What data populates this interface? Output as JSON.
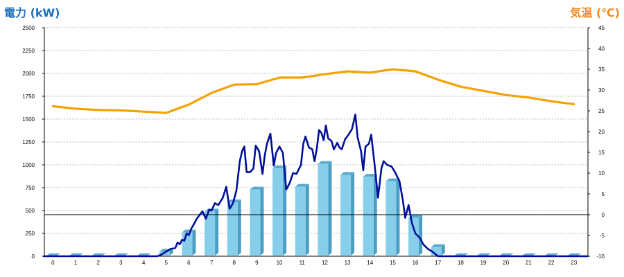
{
  "chart_data": {
    "type": "bar",
    "left_axis_title": "電力 (kW)",
    "right_axis_title": "気温 (℃)",
    "colors": {
      "left_title": "#1c6fba",
      "right_title": "#f08a1c",
      "bar_front": "#87ceeb",
      "bar_side": "#4a9ec4",
      "bar_top": "#5aa9cf",
      "power_line": "#000f99",
      "temperature_line": "#f5a100",
      "grid": "#bbbbbb"
    },
    "x_tick_labels": [
      "0",
      "1",
      "2",
      "3",
      "4",
      "5",
      "6",
      "7",
      "8",
      "9",
      "10",
      "11",
      "12",
      "13",
      "14",
      "15",
      "16",
      "17",
      "18",
      "19",
      "20",
      "21",
      "22",
      "23"
    ],
    "y_left_ticks": [
      "0",
      "250",
      "500",
      "750",
      "1000",
      "1250",
      "1500",
      "1750",
      "2000",
      "2250",
      "2500"
    ],
    "y_right_ticks": [
      "-10",
      "-5",
      "0",
      "5",
      "10",
      "15",
      "20",
      "25",
      "30",
      "35",
      "40",
      "45"
    ],
    "ylim_left": [
      0,
      2500
    ],
    "ylim_right": [
      -10,
      45
    ],
    "grid": true,
    "hourly_power_kw": [
      0,
      0,
      0,
      0,
      0,
      50,
      260,
      490,
      590,
      730,
      960,
      760,
      1010,
      890,
      870,
      820,
      420,
      100,
      0,
      0,
      0,
      0,
      0,
      0
    ],
    "temperature_c": [
      [
        0,
        26.1
      ],
      [
        1,
        25.5
      ],
      [
        2,
        25.2
      ],
      [
        3,
        25.1
      ],
      [
        4,
        24.8
      ],
      [
        5,
        24.5
      ],
      [
        6,
        26.5
      ],
      [
        7,
        29.3
      ],
      [
        8,
        31.3
      ],
      [
        9,
        31.4
      ],
      [
        10,
        33.0
      ],
      [
        11,
        33.0
      ],
      [
        12,
        33.8
      ],
      [
        13,
        34.5
      ],
      [
        14,
        34.2
      ],
      [
        15,
        35.0
      ],
      [
        16,
        34.5
      ],
      [
        17,
        32.5
      ],
      [
        18,
        30.8
      ],
      [
        19,
        29.8
      ],
      [
        20,
        28.8
      ],
      [
        21,
        28.2
      ],
      [
        22,
        27.3
      ],
      [
        23,
        26.6
      ]
    ],
    "power_kw_detail": [
      [
        -0.4,
        0
      ],
      [
        4.6,
        0
      ],
      [
        4.8,
        20
      ],
      [
        5.0,
        50
      ],
      [
        5.2,
        80
      ],
      [
        5.4,
        90
      ],
      [
        5.5,
        150
      ],
      [
        5.6,
        130
      ],
      [
        5.7,
        180
      ],
      [
        5.8,
        170
      ],
      [
        5.9,
        250
      ],
      [
        6.0,
        230
      ],
      [
        6.1,
        300
      ],
      [
        6.2,
        340
      ],
      [
        6.35,
        410
      ],
      [
        6.5,
        460
      ],
      [
        6.6,
        490
      ],
      [
        6.75,
        410
      ],
      [
        6.9,
        510
      ],
      [
        7.0,
        500
      ],
      [
        7.15,
        580
      ],
      [
        7.3,
        560
      ],
      [
        7.5,
        640
      ],
      [
        7.65,
        760
      ],
      [
        7.8,
        520
      ],
      [
        7.95,
        580
      ],
      [
        8.1,
        720
      ],
      [
        8.25,
        1040
      ],
      [
        8.35,
        1150
      ],
      [
        8.45,
        1200
      ],
      [
        8.55,
        920
      ],
      [
        8.7,
        920
      ],
      [
        8.85,
        960
      ],
      [
        8.95,
        1210
      ],
      [
        9.1,
        1150
      ],
      [
        9.25,
        900
      ],
      [
        9.35,
        1100
      ],
      [
        9.45,
        1230
      ],
      [
        9.6,
        1340
      ],
      [
        9.75,
        990
      ],
      [
        9.85,
        1130
      ],
      [
        10.0,
        1200
      ],
      [
        10.15,
        1130
      ],
      [
        10.3,
        730
      ],
      [
        10.45,
        800
      ],
      [
        10.6,
        910
      ],
      [
        10.75,
        900
      ],
      [
        10.95,
        1000
      ],
      [
        11.05,
        1230
      ],
      [
        11.15,
        1310
      ],
      [
        11.3,
        1190
      ],
      [
        11.45,
        1170
      ],
      [
        11.55,
        1040
      ],
      [
        11.65,
        1180
      ],
      [
        11.75,
        1380
      ],
      [
        11.85,
        1350
      ],
      [
        11.95,
        1270
      ],
      [
        12.05,
        1430
      ],
      [
        12.15,
        1290
      ],
      [
        12.3,
        1260
      ],
      [
        12.4,
        1170
      ],
      [
        12.55,
        1240
      ],
      [
        12.65,
        1190
      ],
      [
        12.75,
        1170
      ],
      [
        12.9,
        1280
      ],
      [
        13.05,
        1330
      ],
      [
        13.2,
        1390
      ],
      [
        13.35,
        1550
      ],
      [
        13.45,
        1300
      ],
      [
        13.6,
        1150
      ],
      [
        13.7,
        940
      ],
      [
        13.8,
        1200
      ],
      [
        13.95,
        1230
      ],
      [
        14.05,
        1330
      ],
      [
        14.2,
        1000
      ],
      [
        14.35,
        640
      ],
      [
        14.5,
        960
      ],
      [
        14.6,
        1040
      ],
      [
        14.75,
        1000
      ],
      [
        14.95,
        980
      ],
      [
        15.1,
        920
      ],
      [
        15.3,
        820
      ],
      [
        15.45,
        610
      ],
      [
        15.55,
        420
      ],
      [
        15.7,
        560
      ],
      [
        15.85,
        360
      ],
      [
        16.0,
        250
      ],
      [
        16.2,
        200
      ],
      [
        16.35,
        130
      ],
      [
        16.55,
        80
      ],
      [
        16.75,
        50
      ],
      [
        16.9,
        20
      ],
      [
        17.0,
        0
      ],
      [
        23.6,
        0
      ]
    ]
  }
}
